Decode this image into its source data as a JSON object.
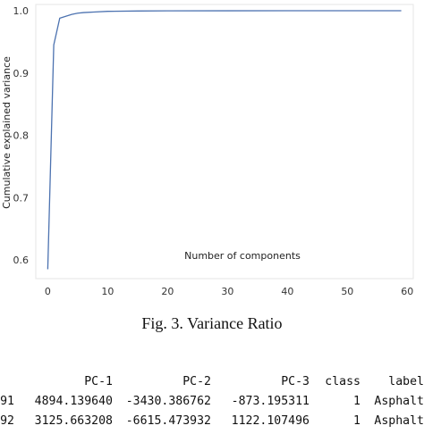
{
  "chart_data": {
    "type": "line",
    "xlabel": "Number of components",
    "ylabel": "Cumulative explained variance",
    "xlim": [
      -2,
      61
    ],
    "ylim": [
      0.57,
      1.01
    ],
    "xticks": [
      0,
      10,
      20,
      30,
      40,
      50,
      60
    ],
    "yticks": [
      0.6,
      0.7,
      0.8,
      0.9,
      1.0
    ],
    "x": [
      0,
      1,
      2,
      3,
      4,
      5,
      6,
      8,
      10,
      15,
      20,
      30,
      40,
      50,
      59
    ],
    "y": [
      0.585,
      0.945,
      0.988,
      0.991,
      0.994,
      0.996,
      0.997,
      0.998,
      0.999,
      0.9995,
      0.9998,
      0.9999,
      1.0,
      1.0,
      1.0
    ],
    "color": "#4c72b0",
    "grid": false,
    "caption": "Fig. 3. Variance Ratio"
  },
  "table": {
    "headers": [
      "",
      "PC-1",
      "PC-2",
      "PC-3",
      "class",
      "label"
    ],
    "rows": [
      [
        "91",
        "4894.139640",
        "-3430.386762",
        "-873.195311",
        "1",
        "Asphalt"
      ],
      [
        "92",
        "3125.663208",
        "-6615.473932",
        "1122.107496",
        "1",
        "Asphalt"
      ]
    ]
  }
}
